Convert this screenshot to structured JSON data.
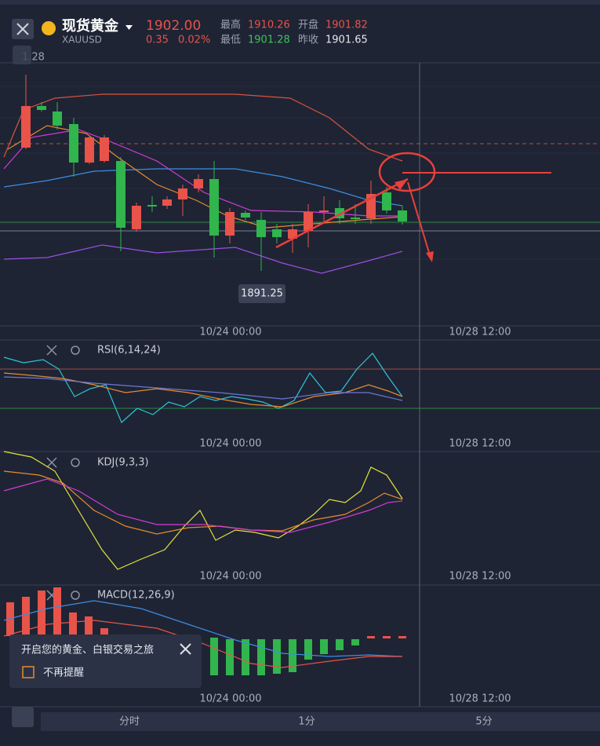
{
  "header": {
    "name": "现货黄金",
    "symbol": "XAUUSD",
    "price": "1902.00",
    "change": "0.35",
    "change_pct": "0.02%",
    "stats": [
      {
        "label": "最高",
        "value": "1910.26"
      },
      {
        "label": "开盘",
        "value": "1901.82"
      },
      {
        "label": "最低",
        "value": "1901.28"
      },
      {
        "label": "昨收",
        "value": "1901.65"
      }
    ]
  },
  "main": {
    "side_label": "1.28",
    "low_label": "1891.25",
    "times": [
      "10/24 00:00",
      "10/28 12:00"
    ]
  },
  "panels": [
    {
      "name": "RSI(6,14,24)",
      "times": [
        "10/24 00:00",
        "10/28 12:00"
      ]
    },
    {
      "name": "KDJ(9,3,3)",
      "times": [
        "10/24 00:00",
        "10/28 12:00"
      ]
    },
    {
      "name": "MACD(12,26,9)",
      "times": [
        "10/24 00:00",
        "10/28 12:00"
      ]
    }
  ],
  "popup": {
    "text": "开启您的黄金、白银交易之旅",
    "checkbox": "不再提醒"
  },
  "tabs": [
    "分时",
    "1分",
    "5分"
  ]
}
